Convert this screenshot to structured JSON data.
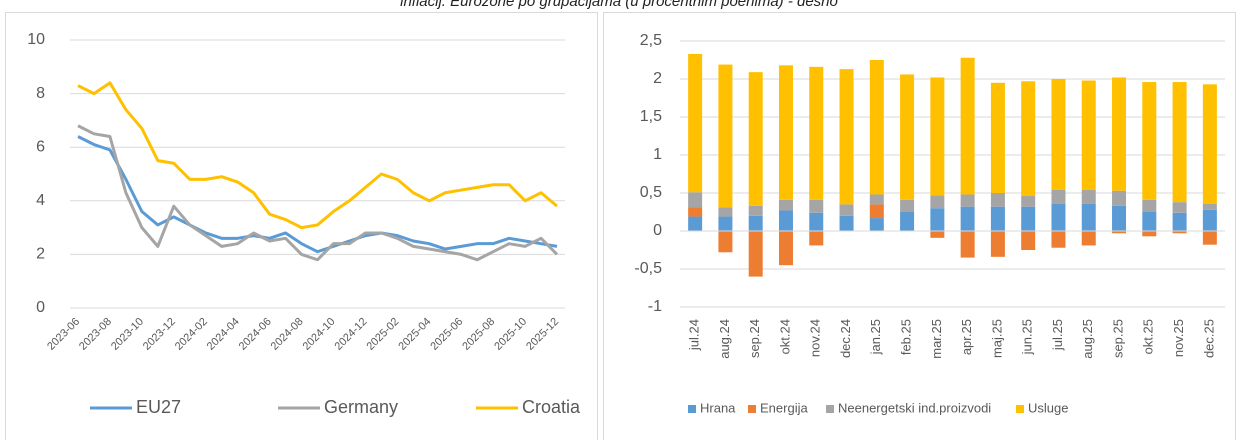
{
  "caption": "inflacij. Eurozone po grupacijama (u procentnim poenima) - desno",
  "chart_data": [
    {
      "type": "line",
      "categories": [
        "2023-06",
        null,
        "2023-08",
        null,
        "2023-10",
        null,
        "2023-12",
        null,
        "2024-02",
        null,
        "2024-04",
        null,
        "2024-06",
        null,
        "2024-08",
        null,
        "2024-10",
        null,
        "2024-12",
        null,
        "2025-02",
        null,
        "2025-04",
        null,
        "2025-06",
        null,
        "2025-08",
        null,
        "2025-10",
        null,
        "2025-12"
      ],
      "series": [
        {
          "name": "EU27",
          "color": "#5b9bd5",
          "values": [
            6.4,
            6.1,
            5.9,
            4.8,
            3.6,
            3.1,
            3.4,
            3.1,
            2.8,
            2.6,
            2.6,
            2.7,
            2.6,
            2.8,
            2.4,
            2.1,
            2.3,
            2.5,
            2.7,
            2.8,
            2.7,
            2.5,
            2.4,
            2.2,
            2.3,
            2.4,
            2.4,
            2.6,
            2.5,
            2.4,
            2.3
          ]
        },
        {
          "name": "Germany",
          "color": "#a5a5a5",
          "values": [
            6.8,
            6.5,
            6.4,
            4.3,
            3.0,
            2.3,
            3.8,
            3.1,
            2.7,
            2.3,
            2.4,
            2.8,
            2.5,
            2.6,
            2.0,
            1.8,
            2.4,
            2.4,
            2.8,
            2.8,
            2.6,
            2.3,
            2.2,
            2.1,
            2.0,
            1.8,
            2.1,
            2.4,
            2.3,
            2.6,
            2.0
          ]
        },
        {
          "name": "Croatia",
          "color": "#ffc000",
          "values": [
            8.3,
            8.0,
            8.4,
            7.4,
            6.7,
            5.5,
            5.4,
            4.8,
            4.8,
            4.9,
            4.7,
            4.3,
            3.5,
            3.3,
            3.0,
            3.1,
            3.6,
            4.0,
            4.5,
            5.0,
            4.8,
            4.3,
            4.0,
            4.3,
            4.4,
            4.5,
            4.6,
            4.6,
            4.0,
            4.3,
            3.8
          ]
        }
      ],
      "ylim": [
        0,
        10
      ],
      "yticks": [
        0,
        2,
        4,
        6,
        8,
        10
      ],
      "grid": true,
      "legend": "bottom"
    },
    {
      "type": "bar",
      "stacked": true,
      "categories": [
        "jul.24",
        "aug.24",
        "sep.24",
        "okt.24",
        "nov.24",
        "dec.24",
        "jan.25",
        "feb.25",
        "mar.25",
        "apr.25",
        "maj.25",
        "jun.25",
        "jul.25",
        "aug.25",
        "sep.25",
        "okt.25",
        "nov.25",
        "dec.25"
      ],
      "series": [
        {
          "name": "Hrana",
          "color": "#5b9bd5",
          "values": [
            0.19,
            0.19,
            0.2,
            0.27,
            0.24,
            0.2,
            0.17,
            0.25,
            0.3,
            0.32,
            0.32,
            0.32,
            0.36,
            0.36,
            0.33,
            0.25,
            0.24,
            0.28
          ]
        },
        {
          "name": "Energija",
          "color": "#ed7d31",
          "values": [
            0.12,
            -0.28,
            -0.6,
            -0.45,
            -0.19,
            0,
            0.18,
            0,
            -0.09,
            -0.35,
            -0.34,
            -0.25,
            -0.22,
            -0.19,
            -0.03,
            -0.07,
            -0.03,
            -0.18
          ]
        },
        {
          "name": "Neenergetski ind.proizvodi",
          "color": "#a5a5a5",
          "values": [
            0.2,
            0.12,
            0.13,
            0.14,
            0.17,
            0.15,
            0.13,
            0.16,
            0.17,
            0.16,
            0.18,
            0.14,
            0.18,
            0.18,
            0.2,
            0.16,
            0.14,
            0.08
          ]
        },
        {
          "name": "Usluge",
          "color": "#ffc000",
          "values": [
            1.82,
            1.88,
            1.76,
            1.77,
            1.75,
            1.78,
            1.77,
            1.65,
            1.55,
            1.8,
            1.45,
            1.51,
            1.46,
            1.44,
            1.49,
            1.55,
            1.58,
            1.57
          ]
        }
      ],
      "ylim": [
        -1,
        2.5
      ],
      "yticks": [
        -1,
        {
          "value": -0.5,
          "label": "-0,5"
        },
        0,
        {
          "value": 0.5,
          "label": "0,5"
        },
        1,
        {
          "value": 1.5,
          "label": "1,5"
        },
        2,
        {
          "value": 2.5,
          "label": "2,5"
        }
      ],
      "grid": true,
      "legend": "bottom"
    }
  ]
}
